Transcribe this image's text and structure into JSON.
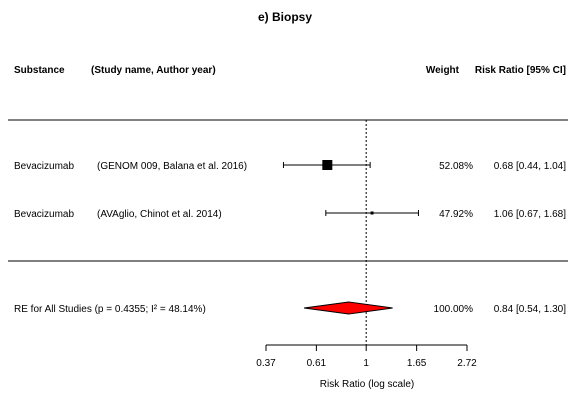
{
  "chart_data": {
    "type": "forest",
    "title": "e) Biopsy",
    "headers": {
      "substance": "Substance",
      "study": "(Study name, Author year)",
      "weight": "Weight",
      "ratio": "Risk Ratio [95% CI]"
    },
    "studies": [
      {
        "substance": "Bevacizumab",
        "study": "(GENOM 009, Balana et al. 2016)",
        "weight_label": "52.08%",
        "ci_label": "0.68 [0.44, 1.04]",
        "weight": 52.08,
        "rr": 0.68,
        "lower": 0.44,
        "upper": 1.04
      },
      {
        "substance": "Bevacizumab",
        "study": "(AVAglio, Chinot et al. 2014)",
        "weight_label": "47.92%",
        "ci_label": "1.06 [0.67, 1.68]",
        "weight": 47.92,
        "rr": 1.06,
        "lower": 0.67,
        "upper": 1.68
      }
    ],
    "summary": {
      "label": "RE for All Studies (p = 0.4355; I² = 48.14%)",
      "weight_label": "100.00%",
      "ci_label": "0.84 [0.54, 1.30]",
      "rr": 0.84,
      "lower": 0.54,
      "upper": 1.3,
      "color": "#ff0000"
    },
    "x_axis": {
      "label": "Risk Ratio (log scale)",
      "scale": "log",
      "ticks": [
        0.37,
        0.61,
        1,
        1.65,
        2.72
      ],
      "tick_labels": [
        "0.37",
        "0.61",
        "1",
        "1.65",
        "2.72"
      ],
      "range": [
        0.37,
        2.72
      ],
      "reference": 1
    }
  }
}
